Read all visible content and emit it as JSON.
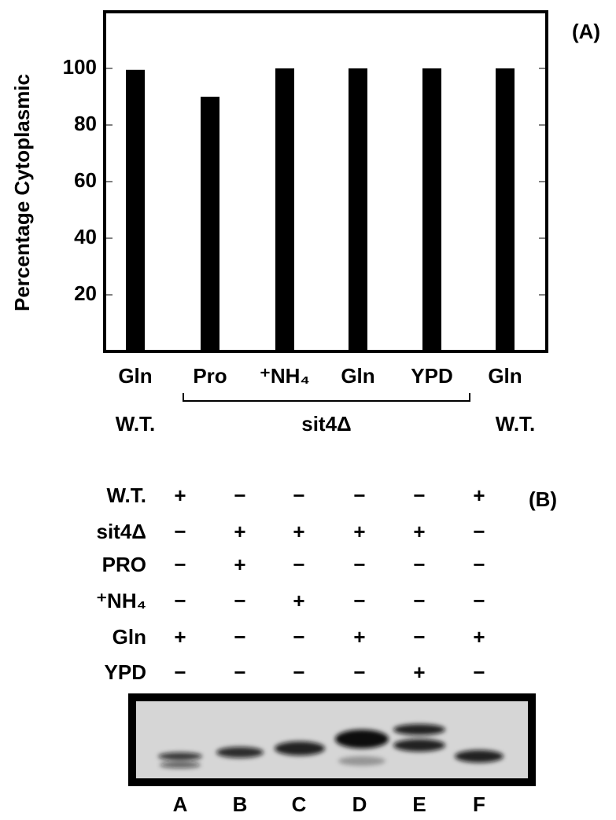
{
  "chart_data": {
    "type": "bar",
    "panel_label": "(A)",
    "ylabel": "Percentage Cytoplasmic",
    "categories": [
      "Gln",
      "Pro",
      "⁺NH₄",
      "Gln",
      "YPD",
      "Gln"
    ],
    "groups": [
      "W.T.",
      "sit4Δ",
      "W.T."
    ],
    "values": [
      99.5,
      90,
      100,
      100,
      100,
      100
    ],
    "color": "#000000",
    "ylim": [
      0,
      120
    ],
    "yticks": [
      20,
      40,
      60,
      80,
      100
    ]
  },
  "panel_b": {
    "label": "(B)",
    "rows": [
      {
        "label": "W.T.",
        "signs": [
          "+",
          "−",
          "−",
          "−",
          "−",
          "+"
        ]
      },
      {
        "label": "sit4Δ",
        "signs": [
          "−",
          "+",
          "+",
          "+",
          "+",
          "−"
        ]
      },
      {
        "label": "PRO",
        "signs": [
          "−",
          "+",
          "−",
          "−",
          "−",
          "−"
        ]
      },
      {
        "label": "⁺NH₄",
        "signs": [
          "−",
          "−",
          "+",
          "−",
          "−",
          "−"
        ]
      },
      {
        "label": "Gln",
        "signs": [
          "+",
          "−",
          "−",
          "+",
          "−",
          "+"
        ]
      },
      {
        "label": "YPD",
        "signs": [
          "−",
          "−",
          "−",
          "−",
          "+",
          "−"
        ]
      }
    ],
    "lanes": [
      "A",
      "B",
      "C",
      "D",
      "E",
      "F"
    ]
  }
}
